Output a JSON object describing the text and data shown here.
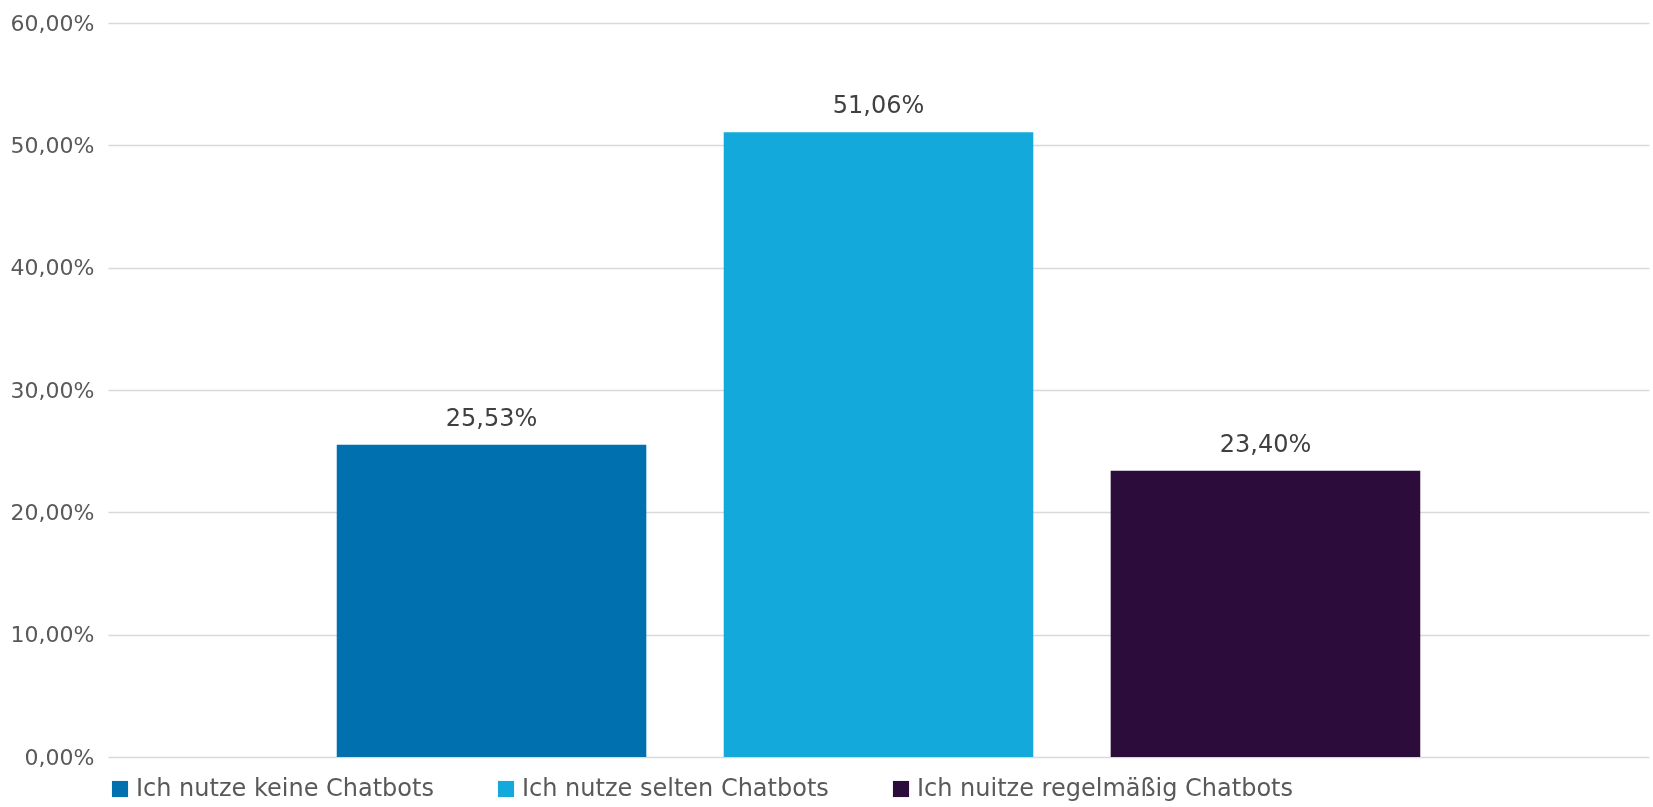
{
  "chart_data": {
    "type": "bar",
    "categories": [
      null
    ],
    "series": [
      {
        "name": "Ich nutze keine Chatbots",
        "color": "#0070ae",
        "values": [
          25.53
        ],
        "value_labels": [
          "25,53%"
        ]
      },
      {
        "name": "Ich nutze selten Chatbots",
        "color": "#14a9db",
        "values": [
          51.06
        ],
        "value_labels": [
          "51,06%"
        ]
      },
      {
        "name": "Ich nuitze regelmäßig Chatbots",
        "color": "#2b0c3b",
        "values": [
          23.4
        ],
        "value_labels": [
          "23,40%"
        ]
      }
    ],
    "ylim": [
      0,
      60
    ],
    "yticks": [
      {
        "value": 0,
        "label": "0,00%"
      },
      {
        "value": 10,
        "label": "10,00%"
      },
      {
        "value": 20,
        "label": "20,00%"
      },
      {
        "value": 30,
        "label": "30,00%"
      },
      {
        "value": 40,
        "label": "40,00%"
      },
      {
        "value": 50,
        "label": "50,00%"
      },
      {
        "value": 60,
        "label": "60,00%"
      }
    ],
    "grid": "y",
    "legend": "bottom",
    "tick_labels": "y"
  }
}
